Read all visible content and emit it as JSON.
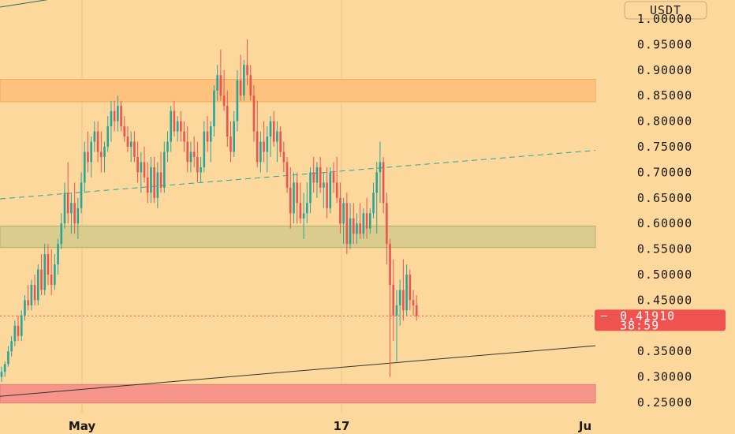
{
  "colors": {
    "background": "#fdd89c",
    "up": "#26a69a",
    "down": "#ef5350",
    "zone_top": "#fcc27e",
    "zone_mid": "#d9cc8c",
    "zone_low": "#f7958a",
    "price_tag": "#ef5350"
  },
  "price_axis": {
    "currency": "USDT",
    "ticks": [
      "1.00000",
      "0.95000",
      "0.90000",
      "0.85000",
      "0.80000",
      "0.75000",
      "0.70000",
      "0.65000",
      "0.60000",
      "0.55000",
      "0.50000",
      "0.45000",
      "0.35000",
      "0.30000",
      "0.25000"
    ]
  },
  "time_axis": {
    "labels": [
      "May",
      "17",
      "Ju"
    ]
  },
  "last_price": {
    "value": "0.41910",
    "countdown": "38:59"
  },
  "chart_data": {
    "type": "candlestick",
    "ylim": [
      0.24,
      1.02
    ],
    "zones": [
      {
        "name": "resistance",
        "from": 0.838,
        "to": 0.882
      },
      {
        "name": "support",
        "from": 0.553,
        "to": 0.595
      },
      {
        "name": "demand",
        "from": 0.249,
        "to": 0.285
      }
    ],
    "trendlines": [
      {
        "style": "dashed",
        "color": "#26a69a",
        "points": [
          [
            0,
            0.648
          ],
          [
            755,
            0.743
          ]
        ]
      },
      {
        "style": "solid",
        "color": "#333333",
        "points": [
          [
            0,
            0.262
          ],
          [
            755,
            0.361
          ]
        ]
      }
    ],
    "candles": [
      [
        0.3,
        0.32,
        0.29,
        0.31
      ],
      [
        0.31,
        0.33,
        0.3,
        0.325
      ],
      [
        0.325,
        0.36,
        0.32,
        0.35
      ],
      [
        0.35,
        0.38,
        0.34,
        0.37
      ],
      [
        0.37,
        0.41,
        0.36,
        0.4
      ],
      [
        0.4,
        0.42,
        0.37,
        0.38
      ],
      [
        0.38,
        0.43,
        0.37,
        0.42
      ],
      [
        0.42,
        0.46,
        0.41,
        0.45
      ],
      [
        0.45,
        0.48,
        0.43,
        0.44
      ],
      [
        0.44,
        0.49,
        0.43,
        0.48
      ],
      [
        0.48,
        0.5,
        0.44,
        0.45
      ],
      [
        0.45,
        0.52,
        0.44,
        0.51
      ],
      [
        0.51,
        0.54,
        0.46,
        0.47
      ],
      [
        0.47,
        0.56,
        0.46,
        0.54
      ],
      [
        0.54,
        0.56,
        0.48,
        0.5
      ],
      [
        0.5,
        0.55,
        0.46,
        0.48
      ],
      [
        0.48,
        0.54,
        0.47,
        0.52
      ],
      [
        0.52,
        0.57,
        0.5,
        0.56
      ],
      [
        0.56,
        0.62,
        0.55,
        0.6
      ],
      [
        0.6,
        0.68,
        0.59,
        0.66
      ],
      [
        0.66,
        0.72,
        0.6,
        0.62
      ],
      [
        0.62,
        0.66,
        0.58,
        0.64
      ],
      [
        0.64,
        0.68,
        0.58,
        0.6
      ],
      [
        0.6,
        0.65,
        0.57,
        0.63
      ],
      [
        0.63,
        0.7,
        0.62,
        0.68
      ],
      [
        0.68,
        0.76,
        0.66,
        0.74
      ],
      [
        0.74,
        0.78,
        0.7,
        0.72
      ],
      [
        0.72,
        0.77,
        0.69,
        0.76
      ],
      [
        0.76,
        0.8,
        0.74,
        0.78
      ],
      [
        0.78,
        0.8,
        0.72,
        0.74
      ],
      [
        0.74,
        0.78,
        0.7,
        0.73
      ],
      [
        0.73,
        0.76,
        0.7,
        0.75
      ],
      [
        0.75,
        0.81,
        0.74,
        0.79
      ],
      [
        0.79,
        0.84,
        0.76,
        0.82
      ],
      [
        0.82,
        0.84,
        0.78,
        0.8
      ],
      [
        0.8,
        0.85,
        0.78,
        0.83
      ],
      [
        0.83,
        0.84,
        0.78,
        0.79
      ],
      [
        0.79,
        0.81,
        0.76,
        0.77
      ],
      [
        0.77,
        0.79,
        0.74,
        0.75
      ],
      [
        0.75,
        0.78,
        0.72,
        0.76
      ],
      [
        0.76,
        0.78,
        0.72,
        0.73
      ],
      [
        0.73,
        0.76,
        0.68,
        0.7
      ],
      [
        0.7,
        0.74,
        0.66,
        0.72
      ],
      [
        0.72,
        0.75,
        0.68,
        0.69
      ],
      [
        0.69,
        0.72,
        0.64,
        0.66
      ],
      [
        0.66,
        0.73,
        0.64,
        0.71
      ],
      [
        0.71,
        0.73,
        0.64,
        0.65
      ],
      [
        0.65,
        0.72,
        0.63,
        0.7
      ],
      [
        0.7,
        0.74,
        0.66,
        0.67
      ],
      [
        0.67,
        0.76,
        0.66,
        0.74
      ],
      [
        0.74,
        0.78,
        0.72,
        0.76
      ],
      [
        0.76,
        0.83,
        0.74,
        0.82
      ],
      [
        0.82,
        0.84,
        0.77,
        0.78
      ],
      [
        0.78,
        0.81,
        0.76,
        0.8
      ],
      [
        0.8,
        0.82,
        0.76,
        0.78
      ],
      [
        0.78,
        0.8,
        0.74,
        0.76
      ],
      [
        0.76,
        0.79,
        0.7,
        0.72
      ],
      [
        0.72,
        0.76,
        0.7,
        0.74
      ],
      [
        0.74,
        0.77,
        0.71,
        0.73
      ],
      [
        0.73,
        0.76,
        0.68,
        0.7
      ],
      [
        0.7,
        0.73,
        0.68,
        0.71
      ],
      [
        0.71,
        0.8,
        0.7,
        0.78
      ],
      [
        0.78,
        0.81,
        0.74,
        0.76
      ],
      [
        0.76,
        0.8,
        0.72,
        0.79
      ],
      [
        0.79,
        0.87,
        0.77,
        0.86
      ],
      [
        0.86,
        0.91,
        0.84,
        0.89
      ],
      [
        0.89,
        0.94,
        0.84,
        0.85
      ],
      [
        0.85,
        0.9,
        0.82,
        0.83
      ],
      [
        0.83,
        0.86,
        0.75,
        0.77
      ],
      [
        0.77,
        0.8,
        0.72,
        0.74
      ],
      [
        0.74,
        0.82,
        0.73,
        0.8
      ],
      [
        0.8,
        0.9,
        0.78,
        0.88
      ],
      [
        0.88,
        0.93,
        0.84,
        0.85
      ],
      [
        0.85,
        0.92,
        0.84,
        0.91
      ],
      [
        0.91,
        0.96,
        0.87,
        0.89
      ],
      [
        0.89,
        0.91,
        0.84,
        0.85
      ],
      [
        0.85,
        0.87,
        0.76,
        0.78
      ],
      [
        0.78,
        0.84,
        0.71,
        0.72
      ],
      [
        0.72,
        0.78,
        0.7,
        0.76
      ],
      [
        0.76,
        0.8,
        0.72,
        0.74
      ],
      [
        0.74,
        0.79,
        0.7,
        0.77
      ],
      [
        0.77,
        0.81,
        0.73,
        0.8
      ],
      [
        0.8,
        0.82,
        0.75,
        0.76
      ],
      [
        0.76,
        0.8,
        0.72,
        0.78
      ],
      [
        0.78,
        0.79,
        0.73,
        0.74
      ],
      [
        0.74,
        0.76,
        0.7,
        0.72
      ],
      [
        0.72,
        0.73,
        0.66,
        0.67
      ],
      [
        0.67,
        0.71,
        0.59,
        0.62
      ],
      [
        0.62,
        0.7,
        0.6,
        0.68
      ],
      [
        0.68,
        0.7,
        0.6,
        0.64
      ],
      [
        0.64,
        0.68,
        0.6,
        0.61
      ],
      [
        0.61,
        0.66,
        0.57,
        0.62
      ],
      [
        0.62,
        0.68,
        0.6,
        0.64
      ],
      [
        0.64,
        0.71,
        0.62,
        0.7
      ],
      [
        0.7,
        0.73,
        0.66,
        0.68
      ],
      [
        0.68,
        0.72,
        0.65,
        0.71
      ],
      [
        0.71,
        0.73,
        0.66,
        0.67
      ],
      [
        0.67,
        0.7,
        0.63,
        0.68
      ],
      [
        0.68,
        0.71,
        0.61,
        0.63
      ],
      [
        0.63,
        0.71,
        0.62,
        0.7
      ],
      [
        0.7,
        0.72,
        0.66,
        0.68
      ],
      [
        0.68,
        0.73,
        0.64,
        0.65
      ],
      [
        0.65,
        0.68,
        0.58,
        0.6
      ],
      [
        0.6,
        0.65,
        0.56,
        0.64
      ],
      [
        0.64,
        0.66,
        0.54,
        0.56
      ],
      [
        0.56,
        0.64,
        0.55,
        0.61
      ],
      [
        0.61,
        0.64,
        0.56,
        0.58
      ],
      [
        0.58,
        0.62,
        0.56,
        0.6
      ],
      [
        0.6,
        0.64,
        0.57,
        0.58
      ],
      [
        0.58,
        0.63,
        0.57,
        0.62
      ],
      [
        0.62,
        0.65,
        0.57,
        0.59
      ],
      [
        0.59,
        0.63,
        0.58,
        0.62
      ],
      [
        0.62,
        0.68,
        0.61,
        0.66
      ],
      [
        0.66,
        0.72,
        0.58,
        0.7
      ],
      [
        0.7,
        0.76,
        0.64,
        0.72
      ],
      [
        0.72,
        0.73,
        0.62,
        0.64
      ],
      [
        0.64,
        0.66,
        0.52,
        0.56
      ],
      [
        0.56,
        0.57,
        0.3,
        0.48
      ],
      [
        0.48,
        0.53,
        0.37,
        0.42
      ],
      [
        0.42,
        0.47,
        0.33,
        0.44
      ],
      [
        0.44,
        0.49,
        0.4,
        0.47
      ],
      [
        0.47,
        0.53,
        0.41,
        0.43
      ],
      [
        0.43,
        0.52,
        0.42,
        0.5
      ],
      [
        0.5,
        0.51,
        0.43,
        0.45
      ],
      [
        0.45,
        0.47,
        0.42,
        0.44
      ],
      [
        0.44,
        0.46,
        0.41,
        0.419
      ]
    ]
  }
}
